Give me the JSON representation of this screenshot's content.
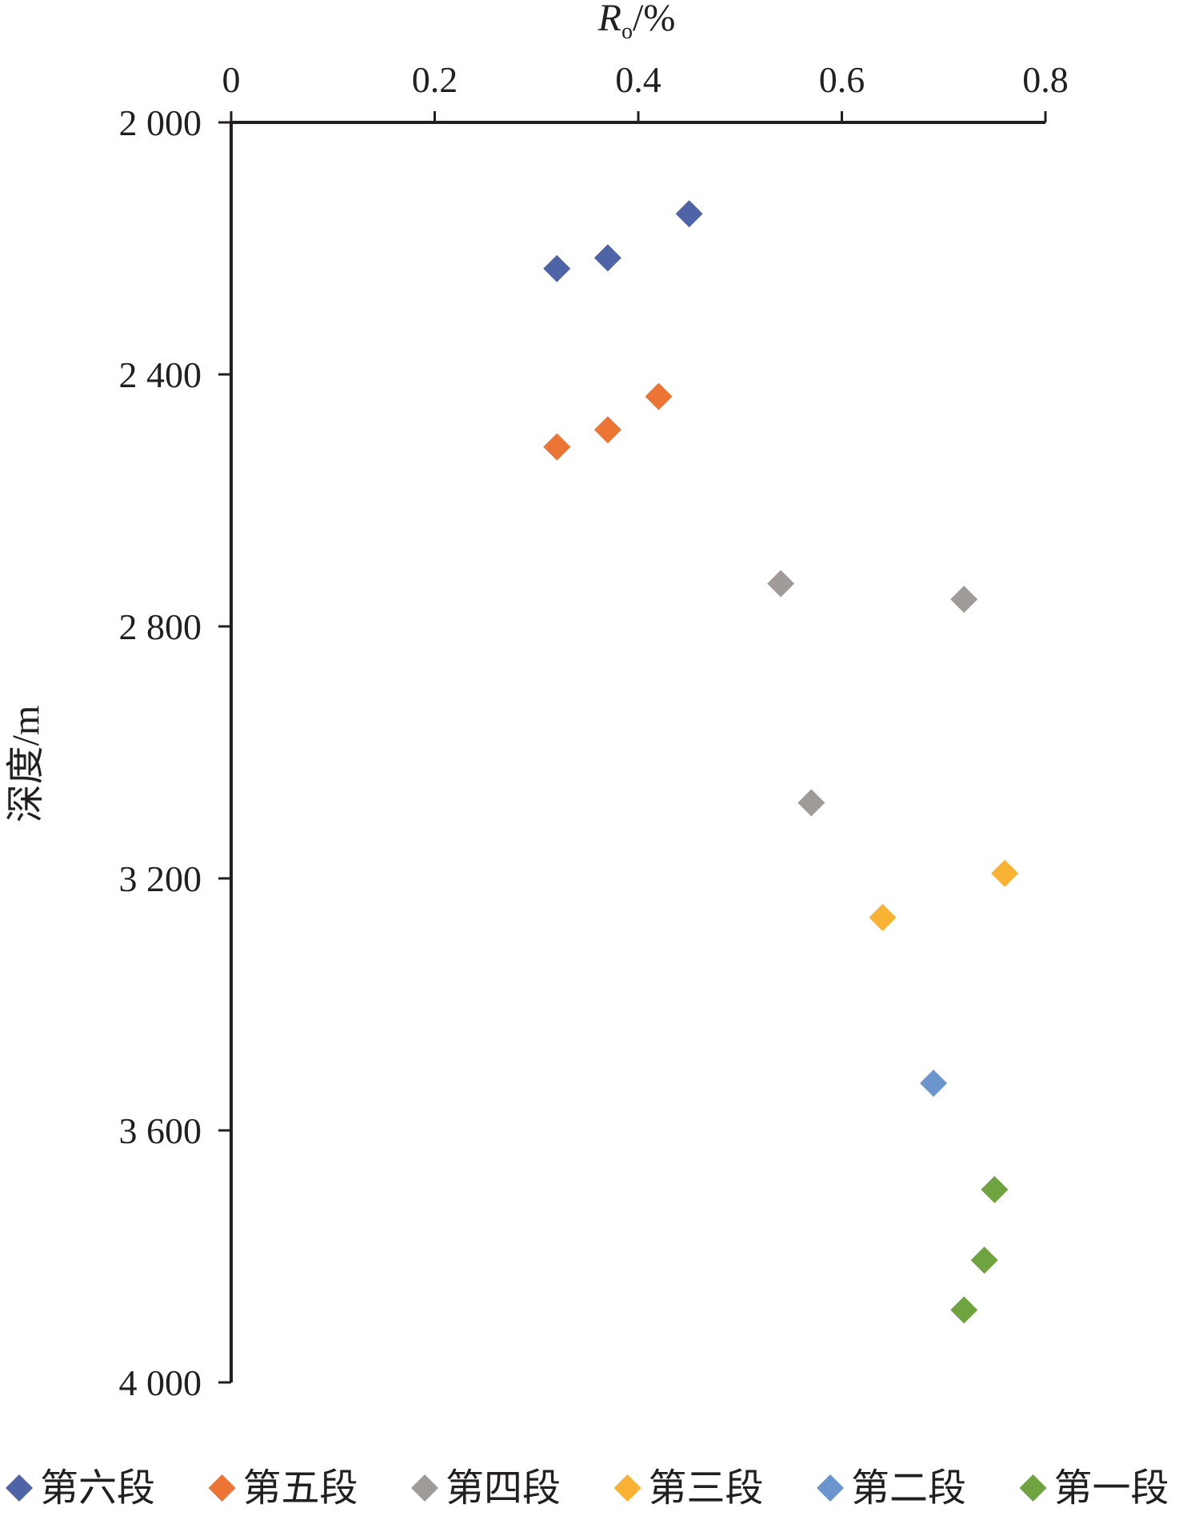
{
  "chart_data": {
    "type": "scatter",
    "xlabel": "Ro/%",
    "xlabel_parts": {
      "main": "R",
      "subscript": "o",
      "suffix": "/%"
    },
    "ylabel": "深度/m",
    "x_axis_position": "top",
    "y_axis_inverted": true,
    "xlim": [
      0,
      0.8
    ],
    "ylim": [
      2000,
      4000
    ],
    "x_ticks": [
      0,
      0.2,
      0.4,
      0.6,
      0.8
    ],
    "x_tick_labels": [
      "0",
      "0.2",
      "0.4",
      "0.6",
      "0.8"
    ],
    "y_ticks": [
      2000,
      2400,
      2800,
      3200,
      3600,
      4000
    ],
    "y_tick_labels": [
      "2 000",
      "2 400",
      "2 800",
      "3 200",
      "3 600",
      "4 000"
    ],
    "grid": false,
    "legend_position": "bottom",
    "marker": "diamond",
    "series": [
      {
        "name": "第六段",
        "color": "#4f64a7",
        "points": [
          [
            0.45,
            2145
          ],
          [
            0.37,
            2215
          ],
          [
            0.32,
            2232
          ]
        ]
      },
      {
        "name": "第五段",
        "color": "#ec7434",
        "points": [
          [
            0.42,
            2435
          ],
          [
            0.37,
            2488
          ],
          [
            0.32,
            2515
          ]
        ]
      },
      {
        "name": "第四段",
        "color": "#a09a98",
        "points": [
          [
            0.54,
            2732
          ],
          [
            0.72,
            2757
          ],
          [
            0.57,
            3080
          ]
        ]
      },
      {
        "name": "第三段",
        "color": "#f9b233",
        "points": [
          [
            0.76,
            3192
          ],
          [
            0.64,
            3262
          ]
        ]
      },
      {
        "name": "第二段",
        "color": "#6d95cd",
        "points": [
          [
            0.69,
            3525
          ]
        ]
      },
      {
        "name": "第一段",
        "color": "#6fa33f",
        "points": [
          [
            0.75,
            3694
          ],
          [
            0.74,
            3806
          ],
          [
            0.72,
            3885
          ]
        ]
      }
    ]
  }
}
